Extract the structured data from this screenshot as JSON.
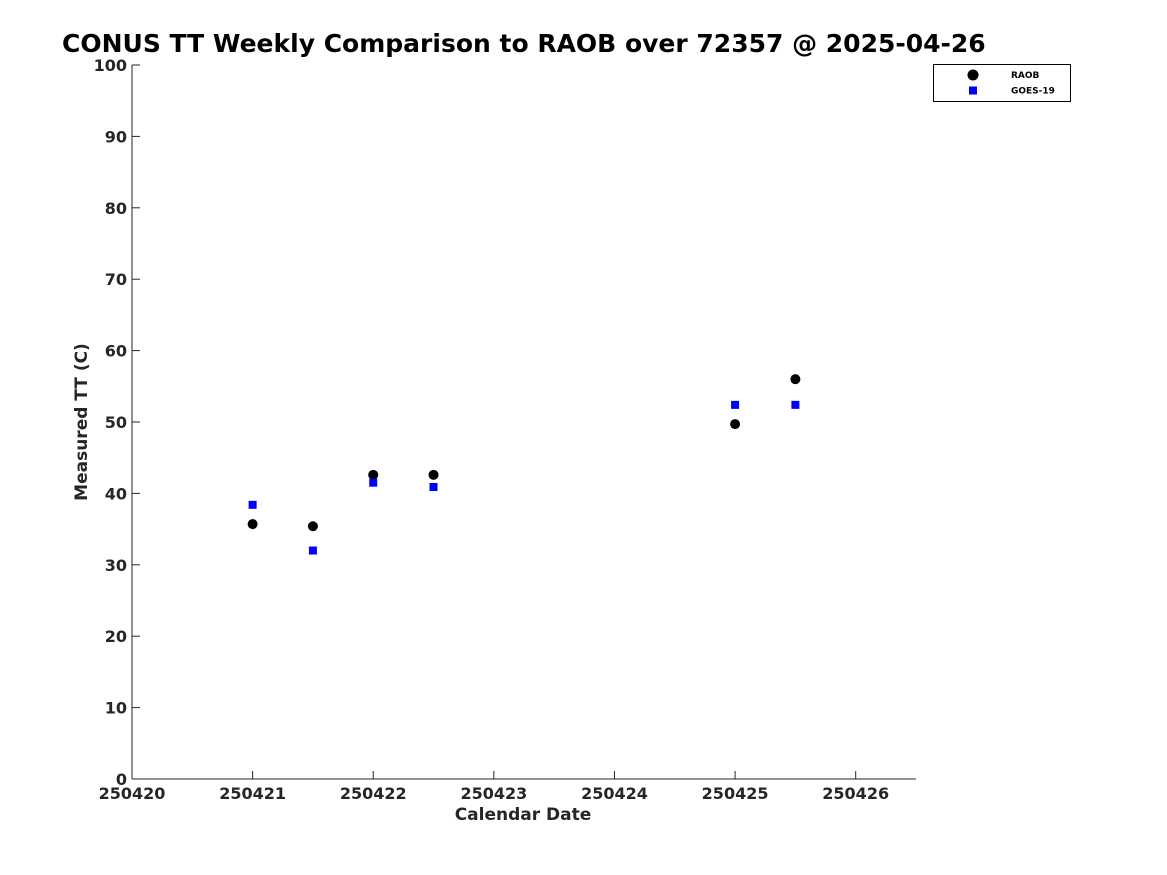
{
  "chart_data": {
    "type": "scatter",
    "title": "CONUS TT Weekly Comparison to RAOB over 72357 @ 2025-04-26",
    "xlabel": "Calendar Date",
    "ylabel": "Measured TT (C)",
    "xlim": [
      250420,
      250426.5
    ],
    "ylim": [
      0,
      100
    ],
    "x_ticks": [
      250420,
      250421,
      250422,
      250423,
      250424,
      250425,
      250426
    ],
    "x_tick_labels": [
      "250420",
      "250421",
      "250422",
      "250423",
      "250424",
      "250425",
      "250426"
    ],
    "y_ticks": [
      0,
      10,
      20,
      30,
      40,
      50,
      60,
      70,
      80,
      90,
      100
    ],
    "y_tick_labels": [
      "0",
      "10",
      "20",
      "30",
      "40",
      "50",
      "60",
      "70",
      "80",
      "90",
      "100"
    ],
    "grid": false,
    "legend_position": "top-right",
    "series": [
      {
        "name": "RAOB",
        "marker": "circle",
        "color": "#000000",
        "x": [
          250421,
          250421.5,
          250422,
          250422.5,
          250425,
          250425.5
        ],
        "y": [
          35.7,
          35.4,
          42.6,
          42.6,
          49.7,
          56.0
        ]
      },
      {
        "name": "GOES-19",
        "marker": "square",
        "color": "#0000ff",
        "x": [
          250421,
          250421.5,
          250422,
          250422.5,
          250425,
          250425.5
        ],
        "y": [
          38.4,
          32.0,
          41.5,
          40.9,
          52.4,
          52.4
        ]
      }
    ]
  }
}
